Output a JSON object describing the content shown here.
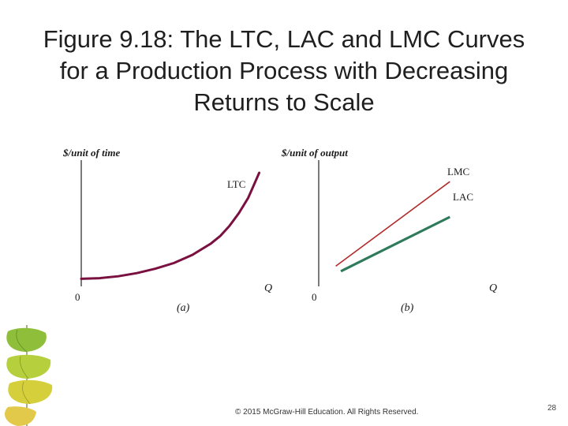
{
  "slide": {
    "title_lines": [
      "Figure 9.18: The LTC, LAC and LMC Curves",
      "for a Production Process with Decreasing",
      "Returns to Scale"
    ],
    "footer": "© 2015 McGraw-Hill Education. All Rights Reserved.",
    "page_number": "28"
  },
  "colors": {
    "ltc": "#7a1040",
    "lmc": "#b22a2a",
    "lac": "#2e7a5a",
    "axis": "#222222"
  },
  "chart_data": [
    {
      "type": "line",
      "panel_label": "(a)",
      "ylabel": "$/unit of time",
      "xlabel": "Q",
      "origin_label": "0",
      "xlim": [
        0,
        10
      ],
      "ylim": [
        0,
        10
      ],
      "series": [
        {
          "name": "LTC",
          "x": [
            0,
            1,
            2,
            3,
            4,
            5,
            6,
            7,
            7.5,
            8,
            8.5,
            9,
            9.3,
            9.6
          ],
          "y": [
            0.6,
            0.65,
            0.8,
            1.05,
            1.4,
            1.85,
            2.5,
            3.4,
            4.0,
            4.8,
            5.8,
            7.0,
            8.0,
            9.0
          ]
        }
      ]
    },
    {
      "type": "line",
      "panel_label": "(b)",
      "ylabel": "$/unit of output",
      "xlabel": "Q",
      "origin_label": "0",
      "xlim": [
        0,
        10
      ],
      "ylim": [
        0,
        10
      ],
      "series": [
        {
          "name": "LMC",
          "x": [
            1,
            7.7
          ],
          "y": [
            1.6,
            8.3
          ]
        },
        {
          "name": "LAC",
          "x": [
            1.3,
            7.7
          ],
          "y": [
            1.2,
            5.5
          ]
        }
      ]
    }
  ]
}
